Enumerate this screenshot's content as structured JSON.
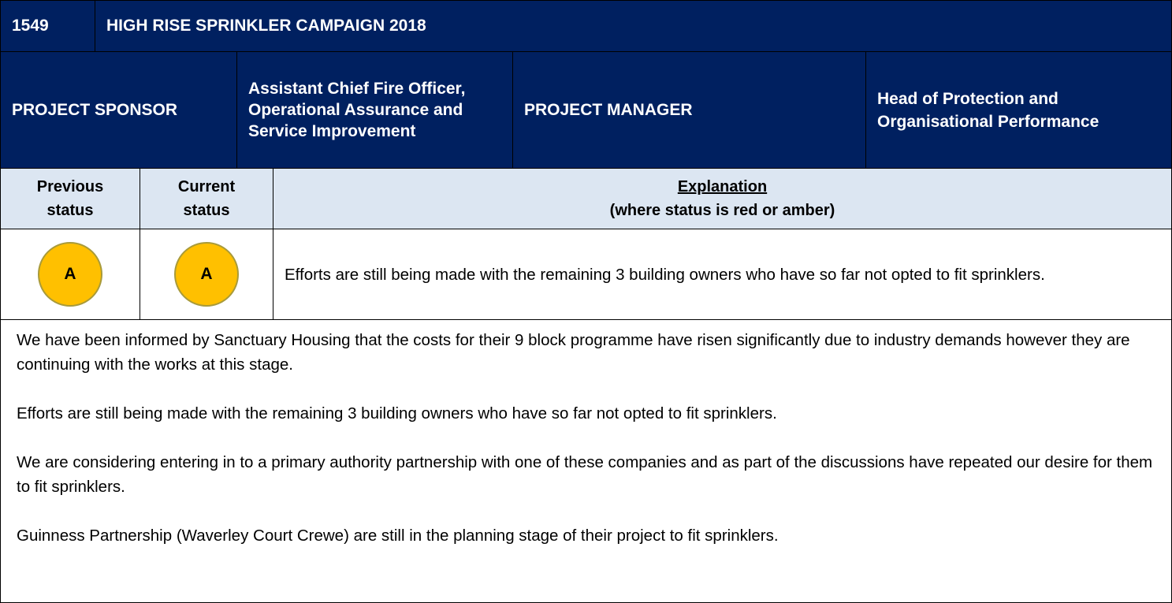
{
  "header": {
    "id": "1549",
    "title": "HIGH RISE SPRINKLER CAMPAIGN 2018"
  },
  "roles": {
    "sponsor_label": "PROJECT SPONSOR",
    "sponsor": "Assistant Chief Fire Officer, Operational Assurance and Service Improvement",
    "manager_label": "PROJECT  MANAGER",
    "manager": "Head of Protection and Organisational Performance"
  },
  "status_table": {
    "headers": {
      "previous": "Previous status",
      "current": "Current status",
      "explanation_title": "Explanation",
      "explanation_subtitle": "(where status is red or amber)"
    },
    "row": {
      "previous": "A",
      "current": "A",
      "explanation": "Efforts are still being made with the remaining 3 building owners who have so far not opted to fit sprinklers."
    }
  },
  "paragraphs": [
    "We have been informed by Sanctuary Housing that the costs for their 9 block programme have risen significantly due to industry demands however they are continuing with the works at this stage.",
    "Efforts are still being made with the remaining 3 building owners who have so far not opted to fit sprinklers.",
    "We are considering entering in to a primary authority partnership with one of these companies and as part of the discussions have repeated our desire for them to fit sprinklers.",
    "Guinness Partnership (Waverley Court Crewe) are still in the planning stage of their project to fit sprinklers."
  ]
}
